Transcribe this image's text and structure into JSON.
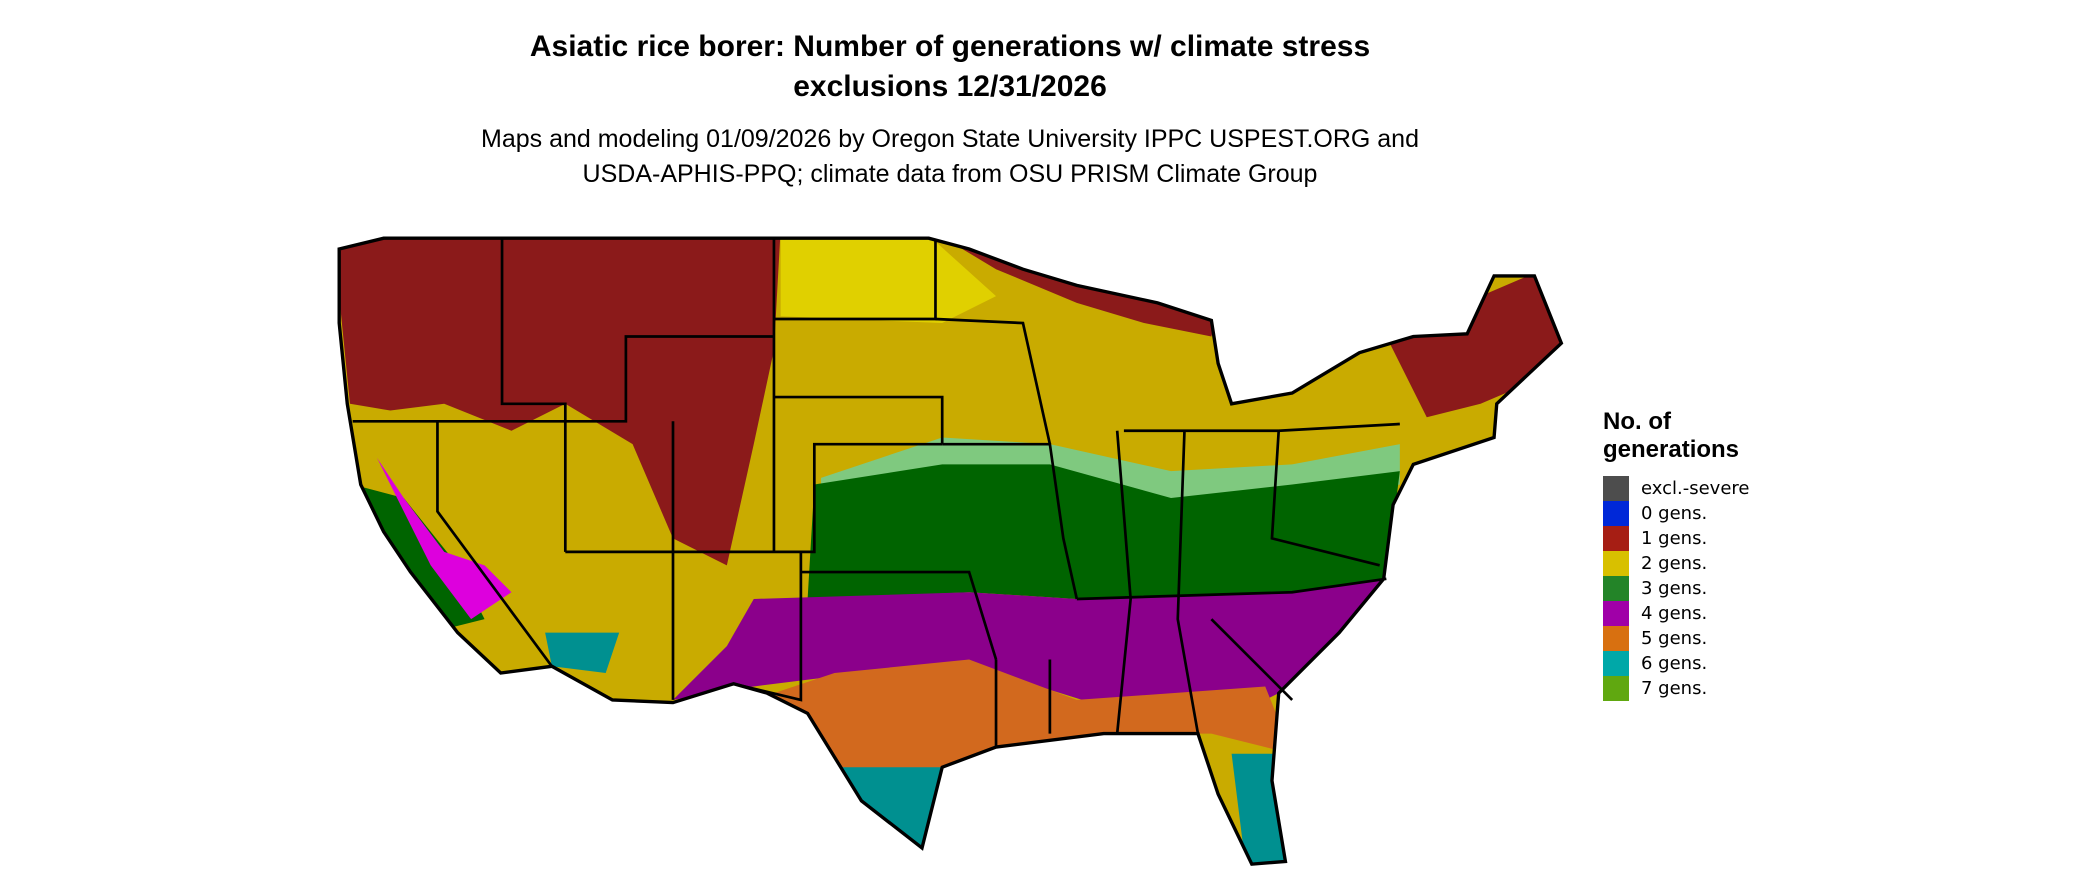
{
  "title_line1": "Asiatic rice borer: Number of generations w/ climate stress",
  "title_line2": "exclusions 12/31/2026",
  "subtitle_line1": "Maps and modeling 01/09/2026 by Oregon State University IPPC USPEST.ORG and",
  "subtitle_line2": "USDA-APHIS-PPQ; climate data from OSU PRISM Climate Group",
  "legend": {
    "title_line1": "No. of",
    "title_line2": "generations",
    "items": [
      {
        "label": "excl.-severe",
        "color": "#4d4d4d"
      },
      {
        "label": "0 gens.",
        "color": "#0028d8"
      },
      {
        "label": "1 gens.",
        "color": "#a61e14"
      },
      {
        "label": "2 gens.",
        "color": "#d8c000"
      },
      {
        "label": "3 gens.",
        "color": "#238428"
      },
      {
        "label": "4 gens.",
        "color": "#a000a8"
      },
      {
        "label": "5 gens.",
        "color": "#d87010"
      },
      {
        "label": "6 gens.",
        "color": "#00a8a8"
      },
      {
        "label": "7 gens.",
        "color": "#60a810"
      }
    ]
  },
  "map_colors": {
    "dark_red": "#8b1a1a",
    "yellow": "#c9ab00",
    "light_yellow": "#e0d000",
    "dark_green": "#006400",
    "light_green": "#7fc97f",
    "purple": "#8b008b",
    "magenta": "#dd00dd",
    "orange": "#d2691e",
    "teal": "#009090",
    "border": "#000000"
  }
}
